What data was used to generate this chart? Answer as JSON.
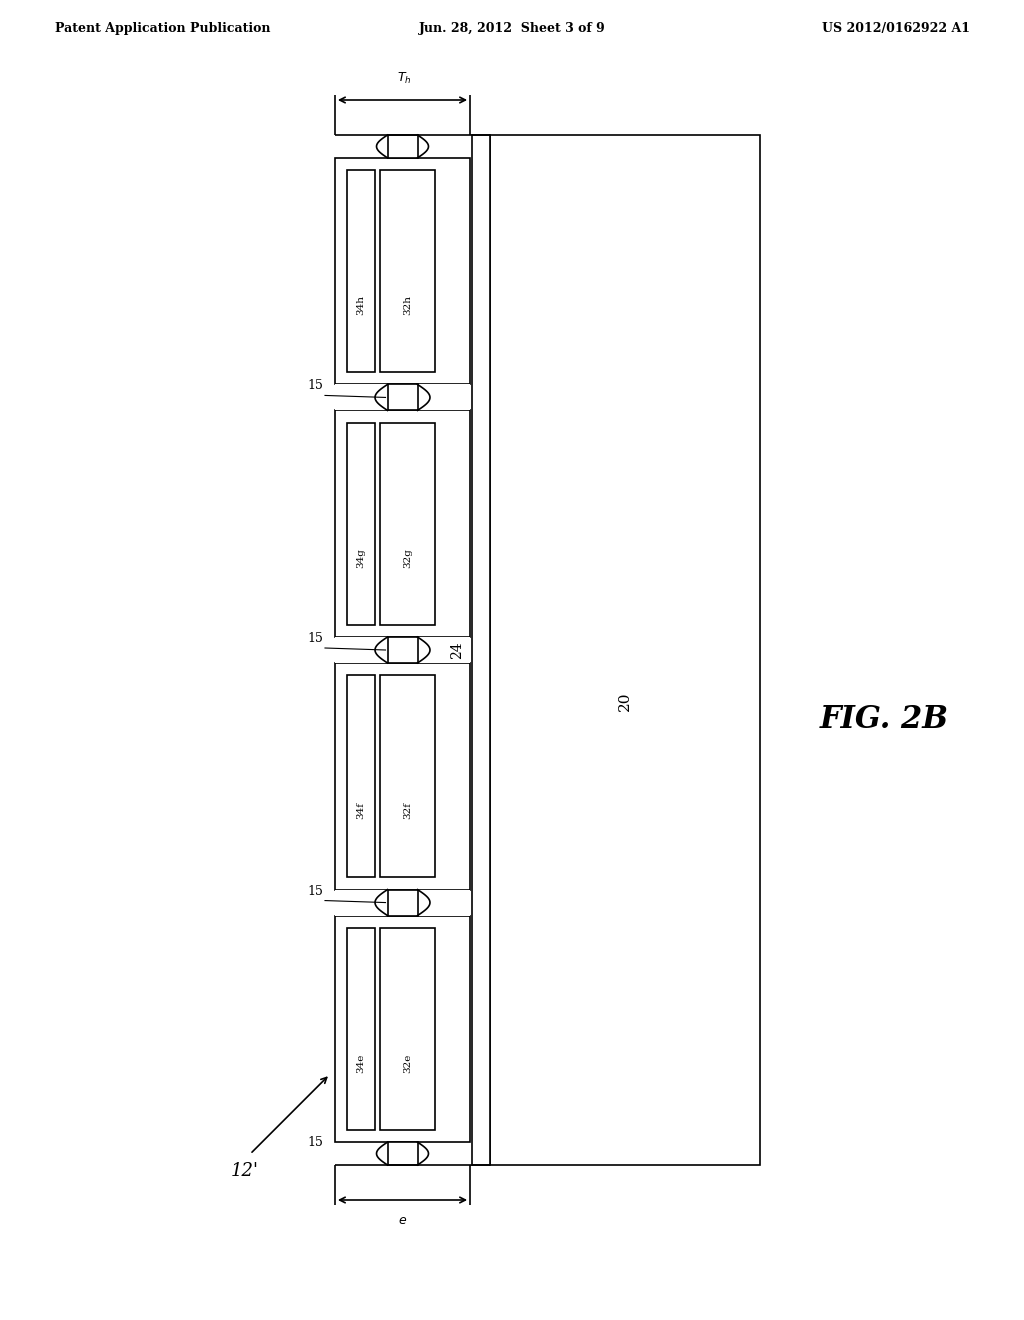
{
  "header_left": "Patent Application Publication",
  "header_center": "Jun. 28, 2012  Sheet 3 of 9",
  "header_right": "US 2012/0162922 A1",
  "fig_label": "FIG. 2B",
  "bg_color": "#ffffff",
  "line_color": "#000000",
  "label_20": "20",
  "label_24": "24",
  "label_12prime": "12'",
  "label_e": "e",
  "modules": [
    {
      "id": "h",
      "label_32": "32h",
      "label_34": "34h"
    },
    {
      "id": "g",
      "label_32": "32g",
      "label_34": "34g"
    },
    {
      "id": "f",
      "label_32": "32f",
      "label_34": "34f"
    },
    {
      "id": "e",
      "label_32": "32e",
      "label_34": "34e"
    }
  ],
  "connector_label": "15"
}
